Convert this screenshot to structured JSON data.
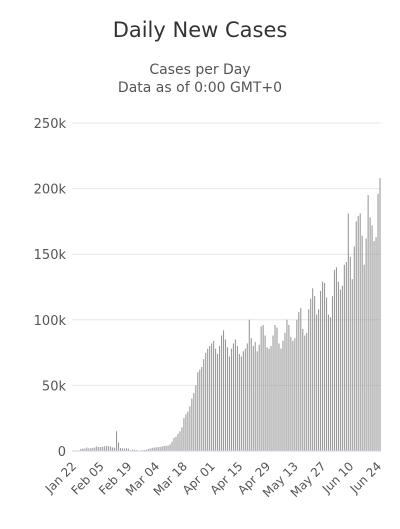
{
  "chart_data": {
    "type": "bar",
    "title": "Daily New Cases",
    "subtitle_lines": [
      "Cases per Day",
      "Data as of 0:00 GMT+0"
    ],
    "xlabel": "",
    "ylabel": "",
    "ylim": [
      0,
      250000
    ],
    "y_ticks": [
      {
        "value": 0,
        "label": "0"
      },
      {
        "value": 50000,
        "label": "50k"
      },
      {
        "value": 100000,
        "label": "100k"
      },
      {
        "value": 150000,
        "label": "150k"
      },
      {
        "value": 200000,
        "label": "200k"
      },
      {
        "value": 250000,
        "label": "250k"
      }
    ],
    "x_tick_labels": [
      {
        "index": 0,
        "label": "Jan 22"
      },
      {
        "index": 14,
        "label": "Feb 05"
      },
      {
        "index": 28,
        "label": "Feb 19"
      },
      {
        "index": 42,
        "label": "Mar 04"
      },
      {
        "index": 56,
        "label": "Mar 18"
      },
      {
        "index": 70,
        "label": "Apr 01"
      },
      {
        "index": 84,
        "label": "Apr 15"
      },
      {
        "index": 98,
        "label": "Apr 29"
      },
      {
        "index": 112,
        "label": "May 13"
      },
      {
        "index": 126,
        "label": "May 27"
      },
      {
        "index": 140,
        "label": "Jun 10"
      },
      {
        "index": 154,
        "label": "Jun 24"
      }
    ],
    "grid": true,
    "legend": "none",
    "bar_color": "#999999",
    "start_date": "Jan 22",
    "values": [
      100,
      200,
      300,
      500,
      1500,
      1800,
      1800,
      2600,
      2000,
      2100,
      2400,
      2700,
      3500,
      3000,
      3000,
      3200,
      3600,
      3900,
      3700,
      3400,
      2700,
      2500,
      15100,
      6400,
      2200,
      2000,
      1900,
      2100,
      1800,
      550,
      1000,
      900,
      800,
      300,
      400,
      600,
      800,
      1000,
      1500,
      1900,
      2400,
      2600,
      2800,
      3000,
      3000,
      3500,
      3800,
      4000,
      4000,
      5000,
      7000,
      10000,
      11000,
      13000,
      15000,
      18000,
      25000,
      28000,
      30000,
      34000,
      40000,
      44000,
      50000,
      60000,
      62000,
      64000,
      70000,
      75000,
      78000,
      80000,
      82000,
      84000,
      78000,
      74000,
      80000,
      88000,
      92000,
      85000,
      79000,
      72000,
      78000,
      82000,
      85000,
      80000,
      74000,
      72000,
      76000,
      78000,
      82000,
      100000,
      86000,
      80000,
      83000,
      76000,
      81000,
      95000,
      96000,
      88000,
      79000,
      78000,
      80000,
      88000,
      96000,
      94000,
      82000,
      78000,
      84000,
      90000,
      100000,
      96000,
      87000,
      84000,
      86000,
      100000,
      106000,
      109000,
      93000,
      88000,
      90000,
      108000,
      116000,
      124000,
      118000,
      104000,
      108000,
      122000,
      129000,
      128000,
      117000,
      104000,
      102000,
      118000,
      138000,
      140000,
      129000,
      123000,
      126000,
      142000,
      144000,
      181000,
      148000,
      131000,
      156000,
      175000,
      179000,
      181000,
      164000,
      142000,
      162000,
      195000,
      178000,
      172000,
      160000,
      163000,
      196000,
      208000
    ]
  }
}
